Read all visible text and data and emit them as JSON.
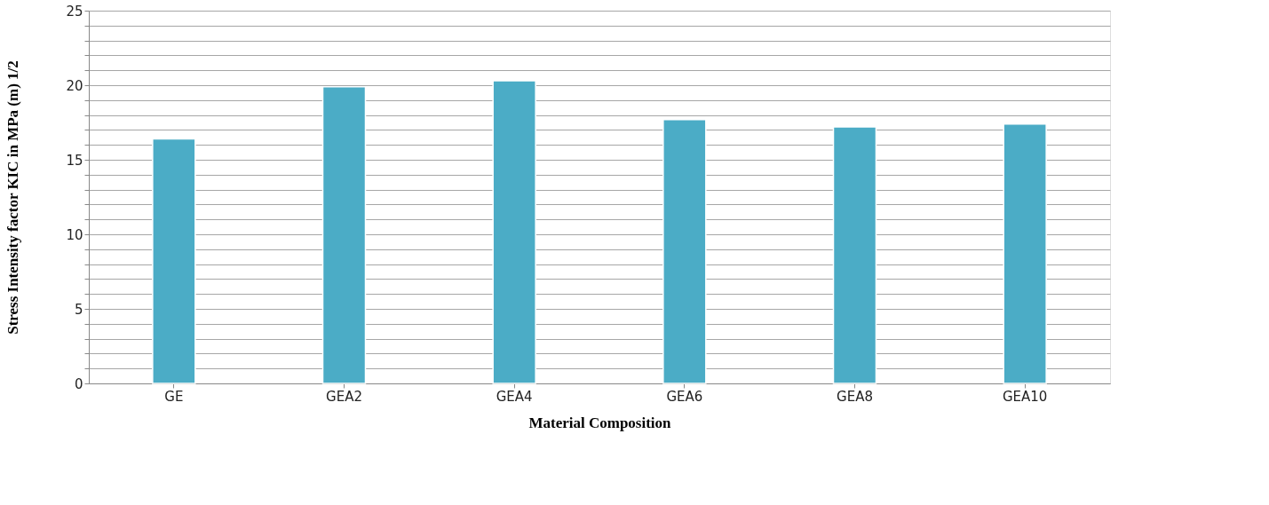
{
  "chart_data": {
    "type": "bar",
    "xlabel": "Material Composition",
    "ylabel": "Stress Intensity factor KIC in MPa (m) 1/2",
    "categories": [
      "GE",
      "GEA2",
      "GEA4",
      "GEA6",
      "GEA8",
      "GEA10"
    ],
    "values": [
      16.4,
      19.9,
      20.3,
      17.7,
      17.2,
      17.4
    ],
    "color": "#4bacc6",
    "ylim": [
      0,
      25
    ],
    "yticks": [
      0,
      {
        "value": 1,
        "label": null
      },
      {
        "value": 2,
        "label": null
      },
      {
        "value": 3,
        "label": null
      },
      {
        "value": 4,
        "label": null
      },
      5,
      {
        "value": 6,
        "label": null
      },
      {
        "value": 7,
        "label": null
      },
      {
        "value": 8,
        "label": null
      },
      {
        "value": 9,
        "label": null
      },
      10,
      {
        "value": 11,
        "label": null
      },
      {
        "value": 12,
        "label": null
      },
      {
        "value": 13,
        "label": null
      },
      {
        "value": 14,
        "label": null
      },
      15,
      {
        "value": 16,
        "label": null
      },
      {
        "value": 17,
        "label": null
      },
      {
        "value": 18,
        "label": null
      },
      {
        "value": 19,
        "label": null
      },
      20,
      {
        "value": 21,
        "label": null
      },
      {
        "value": 22,
        "label": null
      },
      {
        "value": 23,
        "label": null
      },
      {
        "value": 24,
        "label": null
      },
      25
    ],
    "grid": true
  }
}
